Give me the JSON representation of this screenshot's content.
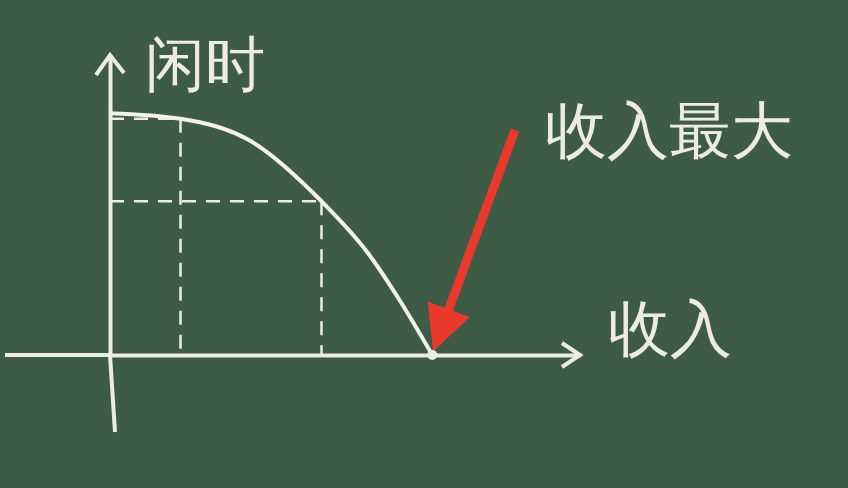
{
  "chart_data": {
    "type": "line",
    "y_label": "闲时",
    "x_label": "收入",
    "x": [
      0,
      2.1,
      4.2,
      6.3,
      7.7,
      8.6,
      9.6
    ],
    "values": [
      6.45,
      6.3,
      5.7,
      4.1,
      2.7,
      1.5,
      0
    ],
    "color": "#f2f2ea",
    "xlim": [
      0,
      14
    ],
    "ylim": [
      0,
      8
    ],
    "xticks": [],
    "yticks": [],
    "tick_labels": false,
    "guides": [
      {
        "x": 2.1,
        "y": 6.3
      },
      {
        "x": 6.3,
        "y": 4.1
      }
    ],
    "annotations": [
      {
        "text": "收入最大",
        "x": 9.6,
        "y": 0,
        "color": "#e8392c"
      }
    ]
  }
}
